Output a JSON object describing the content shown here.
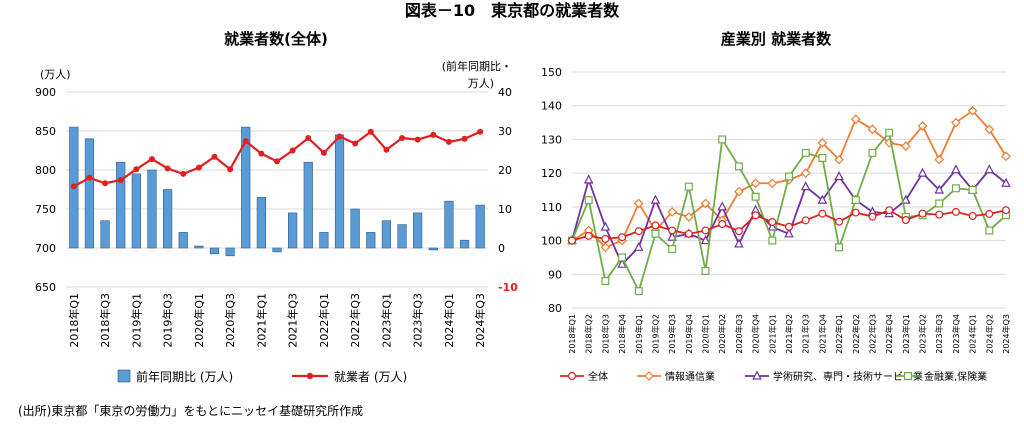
{
  "figure_title": "図表－10　東京都の就業者数",
  "source_note": "(出所)東京都「東京の労働力」をもとにニッセイ基礎研究所作成",
  "chart_data": [
    {
      "type": "bar",
      "title": "就業者数(全体)",
      "left_axis_unit": "(万人)",
      "right_axis_unit_line1": "(前年同期比・",
      "right_axis_unit_line2": "万人)",
      "ylim_left": [
        650,
        900
      ],
      "left_ticks": [
        "650",
        "700",
        "750",
        "800",
        "850",
        "900"
      ],
      "ylim_right": [
        -10,
        40
      ],
      "right_ticks": [
        "-10",
        "0",
        "10",
        "20",
        "30",
        "40"
      ],
      "categories": [
        "2018年Q1",
        "2018年Q2",
        "2018年Q3",
        "2018年Q4",
        "2019年Q1",
        "2019年Q2",
        "2019年Q3",
        "2019年Q4",
        "2020年Q1",
        "2020年Q2",
        "2020年Q3",
        "2020年Q4",
        "2021年Q1",
        "2021年Q2",
        "2021年Q3",
        "2021年Q4",
        "2022年Q1",
        "2022年Q2",
        "2022年Q3",
        "2022年Q4",
        "2023年Q1",
        "2023年Q2",
        "2023年Q3",
        "2023年Q4",
        "2024年Q1",
        "2024年Q2",
        "2024年Q3"
      ],
      "x_tick_labels": [
        "2018年Q1",
        "",
        "2018年Q3",
        "",
        "2019年Q1",
        "",
        "2019年Q3",
        "",
        "2020年Q1",
        "",
        "2020年Q3",
        "",
        "2021年Q1",
        "",
        "2021年Q3",
        "",
        "2022年Q1",
        "",
        "2022年Q3",
        "",
        "2023年Q1",
        "",
        "2023年Q3",
        "",
        "2024年Q1",
        "",
        "2024年Q3"
      ],
      "series": [
        {
          "name": "前年同期比(万人)",
          "kind": "bar",
          "axis": "right",
          "color": "#5b9bd5",
          "values": [
            31,
            28,
            7,
            22,
            19,
            20,
            15,
            4,
            0.5,
            -1.5,
            -2,
            31,
            13,
            -1,
            9,
            22,
            4,
            29,
            10,
            4,
            7,
            6,
            9,
            -0.5,
            12,
            2,
            11
          ]
        },
        {
          "name": "就業者(万人)",
          "kind": "line",
          "axis": "left",
          "color": "#e02020",
          "values": [
            779,
            790,
            783,
            787,
            801,
            814,
            802,
            795,
            803,
            817,
            801,
            837,
            821,
            811,
            825,
            841,
            822,
            843,
            834,
            849,
            826,
            841,
            839,
            845,
            836,
            840,
            849
          ]
        }
      ],
      "legend": [
        "前年同期比 (万人)",
        "就業者 (万人)"
      ],
      "legend_position": "bottom"
    },
    {
      "type": "line",
      "title": "産業別 就業者数",
      "ylim": [
        80,
        150
      ],
      "y_ticks": [
        "80",
        "90",
        "100",
        "110",
        "120",
        "130",
        "140",
        "150"
      ],
      "categories": [
        "2018年Q1",
        "2018年Q2",
        "2018年Q3",
        "2018年Q4",
        "2019年Q1",
        "2019年Q2",
        "2019年Q3",
        "2019年Q4",
        "2020年Q1",
        "2020年Q2",
        "2020年Q3",
        "2020年Q4",
        "2021年Q1",
        "2021年Q2",
        "2021年Q3",
        "2021年Q4",
        "2022年Q1",
        "2022年Q2",
        "2022年Q3",
        "2022年Q4",
        "2023年Q1",
        "2023年Q2",
        "2023年Q3",
        "2023年Q4",
        "2024年Q1",
        "2024年Q2",
        "2024年Q3"
      ],
      "series": [
        {
          "name": "全体",
          "color": "#e02020",
          "marker": "circle",
          "values": [
            100,
            101.4,
            100.5,
            101,
            102.8,
            104.5,
            103,
            102,
            103,
            104.9,
            102.8,
            107.5,
            105.5,
            104.1,
            106,
            108,
            105.6,
            108.3,
            107.1,
            109,
            106.1,
            108,
            107.7,
            108.5,
            107.3,
            107.9,
            109
          ]
        },
        {
          "name": "情報通信業",
          "color": "#ed7d31",
          "marker": "diamond",
          "values": [
            100,
            103,
            98,
            100,
            111,
            103,
            108.5,
            107,
            111,
            106,
            114.5,
            117,
            117,
            118,
            120,
            129,
            124,
            136,
            133,
            129,
            128,
            134,
            124,
            135,
            138.5,
            133,
            125
          ]
        },
        {
          "name": "学術研究、専門・技術サービス業",
          "color": "#7030a0",
          "marker": "triangle",
          "values": [
            100,
            118,
            104,
            93,
            98,
            112,
            101,
            102,
            100,
            110,
            99,
            109,
            104,
            102,
            116,
            112,
            119,
            112,
            108.5,
            108,
            112,
            120,
            115,
            121,
            115,
            121,
            117
          ]
        },
        {
          "name": "金融業,保険業",
          "color": "#70ad47",
          "marker": "square",
          "values": [
            100,
            112,
            88,
            95,
            85,
            102,
            97.5,
            116,
            91,
            130,
            122,
            113,
            100,
            119,
            126,
            124.5,
            98,
            112,
            126,
            132,
            107,
            107.5,
            111,
            115.5,
            115,
            103,
            107.5
          ]
        }
      ],
      "legend": [
        "全体",
        "情報通信業",
        "学術研究、専門・技術サービス業",
        "金融業,保険業"
      ],
      "legend_position": "bottom"
    }
  ]
}
